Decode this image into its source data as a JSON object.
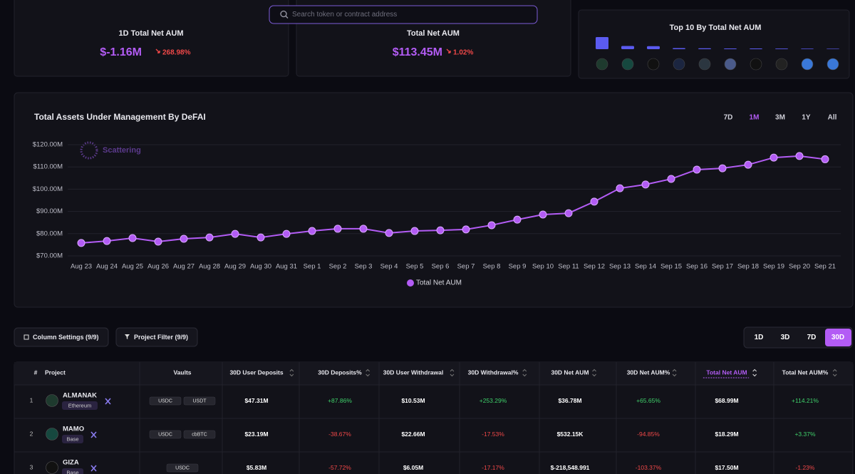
{
  "search": {
    "placeholder": "Search token or contract address"
  },
  "stats": [
    {
      "title": "1D Total Net AUM",
      "value": "$-1.16M",
      "change": "268.98%"
    },
    {
      "title": "Total Net AUM",
      "value": "$113.45M",
      "change": "1.02%"
    }
  ],
  "top10": {
    "title": "Top 10 By Total Net AUM",
    "values": [
      68.99,
      18.29,
      17.5,
      6,
      5,
      4,
      4,
      3.5,
      3,
      2.5
    ],
    "color": "#5b5bf0"
  },
  "chart_data": {
    "type": "line",
    "title": "Total Assets Under Management By DeFAI",
    "range_options": [
      "7D",
      "1M",
      "3M",
      "1Y",
      "All"
    ],
    "active_range": "1M",
    "watermark": "Scattering",
    "categories": [
      "Aug 23",
      "Aug 24",
      "Aug 25",
      "Aug 26",
      "Aug 27",
      "Aug 28",
      "Aug 29",
      "Aug 30",
      "Aug 31",
      "Sep 1",
      "Sep 2",
      "Sep 3",
      "Sep 4",
      "Sep 5",
      "Sep 6",
      "Sep 7",
      "Sep 8",
      "Sep 9",
      "Sep 10",
      "Sep 11",
      "Sep 12",
      "Sep 13",
      "Sep 14",
      "Sep 15",
      "Sep 16",
      "Sep 17",
      "Sep 18",
      "Sep 19",
      "Sep 20",
      "Sep 21"
    ],
    "series": [
      {
        "name": "Total Net AUM",
        "color": "#b35cf5",
        "values": [
          75.8,
          76.7,
          78.0,
          76.4,
          77.7,
          78.3,
          79.9,
          78.3,
          79.9,
          81.2,
          82.2,
          82.2,
          80.3,
          81.2,
          81.5,
          81.9,
          83.8,
          86.3,
          88.6,
          89.2,
          94.4,
          100.4,
          102.1,
          104.6,
          108.8,
          109.4,
          111.0,
          114.2,
          114.9,
          113.45
        ]
      }
    ],
    "ylim": [
      70,
      120
    ],
    "yticks": [
      {
        "value": 70,
        "label": "$70.00M"
      },
      {
        "value": 80,
        "label": "$80.00M"
      },
      {
        "value": 90,
        "label": "$90.00M"
      },
      {
        "value": 100,
        "label": "$100.00M"
      },
      {
        "value": 110,
        "label": "$110.00M"
      },
      {
        "value": 120,
        "label": "$120.00M"
      }
    ],
    "grid": true
  },
  "controls": {
    "column_settings": "Column Settings (9/9)",
    "project_filter": "Project Filter (9/9)",
    "periods": [
      "1D",
      "3D",
      "7D",
      "30D"
    ],
    "active_period": "30D"
  },
  "table": {
    "columns": [
      "#",
      "Project",
      "Vaults",
      "30D User Deposits",
      "30D Deposits%",
      "30D User Withdrawal",
      "30D Withdrawal%",
      "30D Net AUM",
      "30D Net AUM%",
      "Total Net AUM",
      "Total Net AUM%"
    ],
    "sorted_column": "Total Net AUM",
    "rows": [
      {
        "rank": 1,
        "project": "ALMANAK",
        "chain": "Ethereum",
        "vaults": [
          "USDC",
          "USDT"
        ],
        "cells": [
          "$47.31M",
          "+87.86%",
          "$10.53M",
          "+253.29%",
          "$36.78M",
          "+65.65%",
          "$68.99M",
          "+114.21%"
        ]
      },
      {
        "rank": 2,
        "project": "MAMO",
        "chain": "Base",
        "vaults": [
          "USDC",
          "cbBTC"
        ],
        "cells": [
          "$23.19M",
          "-38.67%",
          "$22.66M",
          "-17.53%",
          "$532.15K",
          "-94.85%",
          "$18.29M",
          "+3.37%"
        ]
      },
      {
        "rank": 3,
        "project": "GIZA",
        "chain": "Base",
        "vaults": [
          "USDC"
        ],
        "cells": [
          "$5.83M",
          "-57.72%",
          "$6.05M",
          "-17.17%",
          "$-218,548.991",
          "-103.37%",
          "$17.50M",
          "-1.23%"
        ]
      }
    ]
  }
}
